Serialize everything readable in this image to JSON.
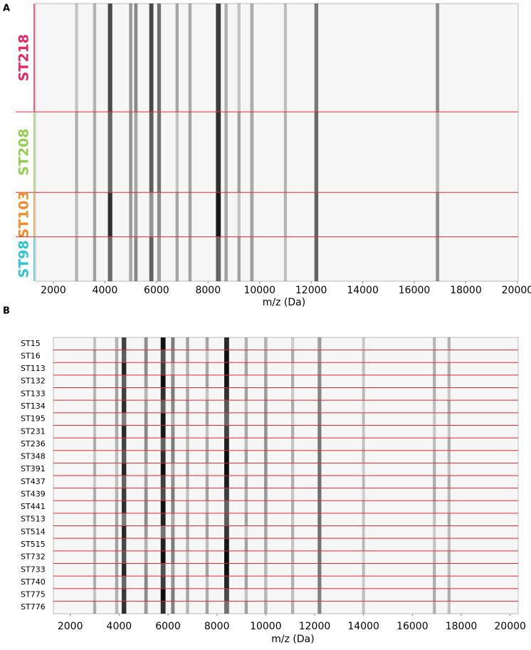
{
  "chart_data": [
    {
      "type": "gel",
      "panel": "A",
      "xlabel": "m/z (Da)",
      "xlim": [
        1310,
        20030
      ],
      "xticks": [
        2000,
        4000,
        6000,
        8000,
        10000,
        12000,
        14000,
        16000,
        18000,
        20000
      ],
      "groups": [
        {
          "name": "ST218",
          "color": "#e8265a"
        },
        {
          "name": "ST208",
          "color": "#8fd14f"
        },
        {
          "name": "ST103",
          "color": "#f28c28"
        },
        {
          "name": "ST98",
          "color": "#2ec4d6"
        }
      ],
      "peaks": [
        {
          "mz": 2900,
          "intensity": 0.3
        },
        {
          "mz": 3600,
          "intensity": 0.35
        },
        {
          "mz": 4200,
          "intensity": 0.8
        },
        {
          "mz": 5000,
          "intensity": 0.4
        },
        {
          "mz": 5200,
          "intensity": 0.45
        },
        {
          "mz": 5800,
          "intensity": 0.7
        },
        {
          "mz": 6100,
          "intensity": 0.55
        },
        {
          "mz": 6800,
          "intensity": 0.35
        },
        {
          "mz": 7300,
          "intensity": 0.35
        },
        {
          "mz": 8400,
          "intensity": 0.95
        },
        {
          "mz": 8700,
          "intensity": 0.4
        },
        {
          "mz": 9200,
          "intensity": 0.35
        },
        {
          "mz": 9700,
          "intensity": 0.45
        },
        {
          "mz": 11000,
          "intensity": 0.3
        },
        {
          "mz": 12200,
          "intensity": 0.6
        },
        {
          "mz": 16900,
          "intensity": 0.45
        }
      ]
    },
    {
      "type": "gel",
      "panel": "B",
      "xlabel": "m/z (Da)",
      "xlim": [
        1310,
        20330
      ],
      "xticks": [
        2000,
        4000,
        6000,
        8000,
        10000,
        12000,
        14000,
        16000,
        18000,
        20000
      ],
      "rows": [
        "ST15",
        "ST16",
        "ST113",
        "ST132",
        "ST133",
        "ST134",
        "ST195",
        "ST231",
        "ST236",
        "ST348",
        "ST391",
        "ST437",
        "ST439",
        "ST441",
        "ST513",
        "ST514",
        "ST515",
        "ST732",
        "ST733",
        "ST740",
        "ST775",
        "ST776"
      ],
      "peaks": [
        {
          "mz": 3000,
          "intensity": 0.3
        },
        {
          "mz": 3900,
          "intensity": 0.35
        },
        {
          "mz": 4200,
          "intensity": 0.85
        },
        {
          "mz": 5100,
          "intensity": 0.45
        },
        {
          "mz": 5800,
          "intensity": 0.95
        },
        {
          "mz": 6200,
          "intensity": 0.5
        },
        {
          "mz": 6800,
          "intensity": 0.35
        },
        {
          "mz": 7600,
          "intensity": 0.35
        },
        {
          "mz": 8400,
          "intensity": 0.95
        },
        {
          "mz": 9200,
          "intensity": 0.35
        },
        {
          "mz": 10000,
          "intensity": 0.4
        },
        {
          "mz": 11100,
          "intensity": 0.3
        },
        {
          "mz": 12200,
          "intensity": 0.55
        },
        {
          "mz": 14000,
          "intensity": 0.25
        },
        {
          "mz": 16900,
          "intensity": 0.3
        },
        {
          "mz": 17500,
          "intensity": 0.3
        }
      ]
    }
  ]
}
